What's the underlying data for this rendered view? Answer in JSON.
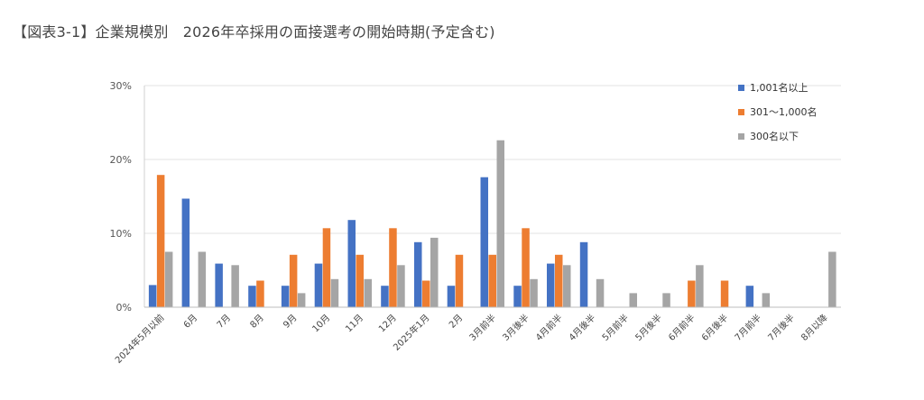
{
  "title": "【図表3-1】企業規模別　2026年卒採用の面接選考の開始時期(予定含む)",
  "chart_data": {
    "type": "bar",
    "title": "",
    "xlabel": "",
    "ylabel": "",
    "ylim": [
      0,
      30
    ],
    "y_ticks": [
      "0%",
      "10%",
      "20%",
      "30%"
    ],
    "grid": true,
    "legend_position": "top-right",
    "categories": [
      "2024年5月以前",
      "6月",
      "7月",
      "8月",
      "9月",
      "10月",
      "11月",
      "12月",
      "2025年1月",
      "2月",
      "3月前半",
      "3月後半",
      "4月前半",
      "4月後半",
      "5月前半",
      "5月後半",
      "6月前半",
      "6月後半",
      "7月前半",
      "7月後半",
      "8月以降"
    ],
    "series": [
      {
        "name": "1,001名以上",
        "color": "#4472C4",
        "values": [
          3,
          14.7,
          5.9,
          2.9,
          2.9,
          5.9,
          11.8,
          2.9,
          8.8,
          2.9,
          17.6,
          2.9,
          5.9,
          8.8,
          0,
          0,
          0,
          0,
          2.9,
          0,
          0
        ]
      },
      {
        "name": "301～1,000名",
        "color": "#ED7D31",
        "values": [
          17.9,
          0,
          0,
          3.6,
          7.1,
          10.7,
          7.1,
          10.7,
          3.6,
          7.1,
          7.1,
          10.7,
          7.1,
          0,
          0,
          0,
          3.6,
          3.6,
          0,
          0,
          0
        ]
      },
      {
        "name": "300名以下",
        "color": "#A5A5A5",
        "values": [
          7.5,
          7.5,
          5.7,
          0,
          1.9,
          3.8,
          3.8,
          5.7,
          9.4,
          0,
          22.6,
          3.8,
          5.7,
          3.8,
          1.9,
          1.9,
          5.7,
          0,
          1.9,
          0,
          7.5
        ]
      }
    ]
  }
}
